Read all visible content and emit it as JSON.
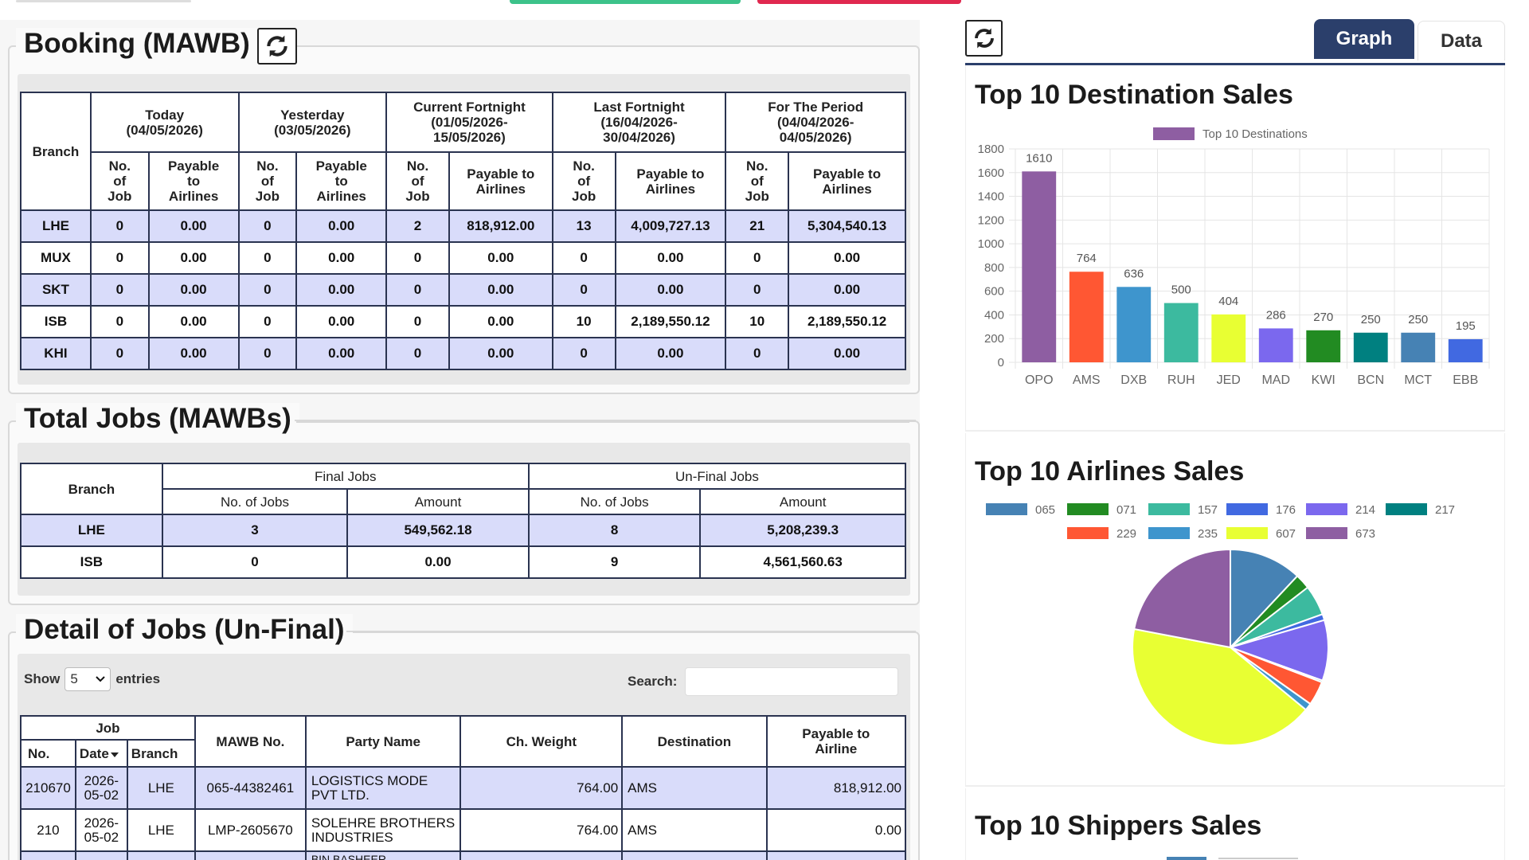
{
  "booking": {
    "title": "Booking (MAWB)",
    "branch_header": "Branch",
    "periods": [
      {
        "label": "Today\n(04/05/2026)"
      },
      {
        "label": "Yesterday\n(03/05/2026)"
      },
      {
        "label": "Current Fortnight\n(01/05/2026-\n15/05/2026)"
      },
      {
        "label": "Last Fortnight\n(16/04/2026-\n30/04/2026)"
      },
      {
        "label": "For The Period\n(04/04/2026-\n04/05/2026)"
      }
    ],
    "sub_jobs": "No.\nof\nJob",
    "sub_payable_a": "Payable\nto\nAirlines",
    "sub_payable_b": "Payable to\nAirlines",
    "rows": [
      {
        "branch": "LHE",
        "v": [
          "0",
          "0.00",
          "0",
          "0.00",
          "2",
          "818,912.00",
          "13",
          "4,009,727.13",
          "21",
          "5,304,540.13"
        ]
      },
      {
        "branch": "MUX",
        "v": [
          "0",
          "0.00",
          "0",
          "0.00",
          "0",
          "0.00",
          "0",
          "0.00",
          "0",
          "0.00"
        ]
      },
      {
        "branch": "SKT",
        "v": [
          "0",
          "0.00",
          "0",
          "0.00",
          "0",
          "0.00",
          "0",
          "0.00",
          "0",
          "0.00"
        ]
      },
      {
        "branch": "ISB",
        "v": [
          "0",
          "0.00",
          "0",
          "0.00",
          "0",
          "0.00",
          "10",
          "2,189,550.12",
          "10",
          "2,189,550.12"
        ]
      },
      {
        "branch": "KHI",
        "v": [
          "0",
          "0.00",
          "0",
          "0.00",
          "0",
          "0.00",
          "0",
          "0.00",
          "0",
          "0.00"
        ]
      }
    ]
  },
  "total_jobs": {
    "title": "Total Jobs (MAWBs)",
    "branch_header": "Branch",
    "final_header": "Final Jobs",
    "unfinal_header": "Un-Final Jobs",
    "no_of_jobs": "No. of Jobs",
    "amount": "Amount",
    "rows": [
      {
        "branch": "LHE",
        "final_jobs": "3",
        "final_amount": "549,562.18",
        "unfinal_jobs": "8",
        "unfinal_amount": "5,208,239.3"
      },
      {
        "branch": "ISB",
        "final_jobs": "0",
        "final_amount": "0.00",
        "unfinal_jobs": "9",
        "unfinal_amount": "4,561,560.63"
      }
    ]
  },
  "detail": {
    "title": "Detail of Jobs (Un-Final)",
    "show_label": "Show",
    "show_value": "5",
    "entries_label": "entries",
    "search_label": "Search:",
    "search_value": "",
    "headers": {
      "job": "Job",
      "no": "No.",
      "date": "Date",
      "branch": "Branch",
      "mawb": "MAWB No.",
      "party": "Party Name",
      "weight": "Ch. Weight",
      "destination": "Destination",
      "payable": "Payable to\nAirline"
    },
    "rows": [
      {
        "no": "210670",
        "date": "2026-\n05-02",
        "branch": "LHE",
        "mawb": "065-44382461",
        "party": "LOGISTICS MODE\nPVT LTD.",
        "weight": "764.00",
        "destination": "AMS",
        "payable": "818,912.00"
      },
      {
        "no": "210",
        "date": "2026-\n05-02",
        "branch": "LHE",
        "mawb": "LMP-2605670",
        "party": "SOLEHRE BROTHERS\nINDUSTRIES",
        "weight": "764.00",
        "destination": "AMS",
        "payable": "0.00"
      },
      {
        "no": "",
        "date": "",
        "branch": "",
        "mawb": "",
        "party": "BIN BASHEER",
        "weight": "",
        "destination": "",
        "payable": ""
      }
    ]
  },
  "tabs": {
    "graph": "Graph",
    "data": "Data"
  },
  "chart_titles": {
    "destinations": "Top 10 Destination Sales",
    "airlines": "Top 10 Airlines Sales",
    "shippers": "Top 10 Shippers Sales"
  },
  "colors": {
    "purple": "#8e5ea2",
    "orange": "#ff5733",
    "blue": "#3e95cd",
    "teal": "#3cba9f",
    "yellow": "#e8ff33",
    "violet": "#7b68ee",
    "green": "#228b22",
    "darkteal": "#008080",
    "steel": "#4682b4",
    "royal": "#4169e1",
    "tab_active": "#2b3f6b"
  },
  "chart_data": [
    {
      "type": "bar",
      "title": "Top 10 Destination Sales",
      "legend": [
        "Top 10 Destinations"
      ],
      "categories": [
        "OPO",
        "AMS",
        "DXB",
        "RUH",
        "JED",
        "MAD",
        "KWI",
        "BCN",
        "MCT",
        "EBB"
      ],
      "series": [
        {
          "name": "Top 10 Destinations",
          "values": [
            1610,
            764,
            636,
            500,
            404,
            286,
            270,
            250,
            250,
            195
          ]
        }
      ],
      "colors": [
        "#8e5ea2",
        "#ff5733",
        "#3e95cd",
        "#3cba9f",
        "#e8ff33",
        "#7b68ee",
        "#228b22",
        "#008080",
        "#4682b4",
        "#4169e1"
      ],
      "ylim": [
        0,
        1800
      ],
      "yticks": [
        "0",
        "200",
        "400",
        "600",
        "800",
        "1000",
        "1200",
        "1400",
        "1600",
        "1800"
      ],
      "grid": true,
      "legend_position": "top"
    },
    {
      "type": "pie",
      "title": "Top 10 Airlines Sales",
      "labels": [
        "065",
        "071",
        "157",
        "176",
        "214",
        "217",
        "229",
        "235",
        "607",
        "673"
      ],
      "values": [
        12,
        2.5,
        5,
        1,
        10,
        0.3,
        4,
        1.2,
        42,
        22
      ],
      "colors": [
        "#4682b4",
        "#228b22",
        "#3cba9f",
        "#4169e1",
        "#7b68ee",
        "#008080",
        "#ff5733",
        "#3e95cd",
        "#e8ff33",
        "#8e5ea2"
      ],
      "legend_position": "top"
    }
  ]
}
